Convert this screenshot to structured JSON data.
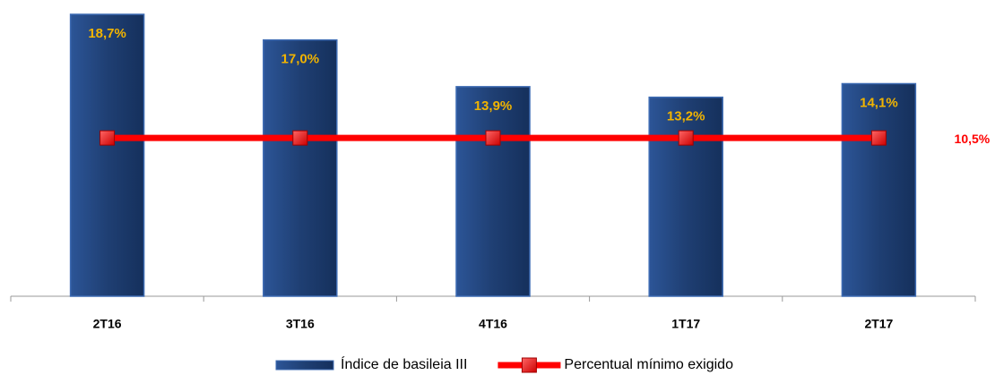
{
  "chart_data": {
    "type": "bar-line",
    "categories": [
      "2T16",
      "3T16",
      "4T16",
      "1T17",
      "2T17"
    ],
    "series": [
      {
        "name": "Índice de basileia III",
        "type": "bar",
        "color": "#1f3f73",
        "values": [
          18.7,
          17.0,
          13.9,
          13.2,
          14.1
        ],
        "value_labels": [
          "18,7%",
          "17,0%",
          "13,9%",
          "13,2%",
          "14,1%"
        ]
      },
      {
        "name": "Percentual mínimo exigido",
        "type": "line",
        "color": "#ff0000",
        "values": [
          10.5,
          10.5,
          10.5,
          10.5,
          10.5
        ],
        "value_labels": [
          null,
          null,
          null,
          null,
          "10,5%"
        ]
      }
    ],
    "legend": "bottom"
  }
}
